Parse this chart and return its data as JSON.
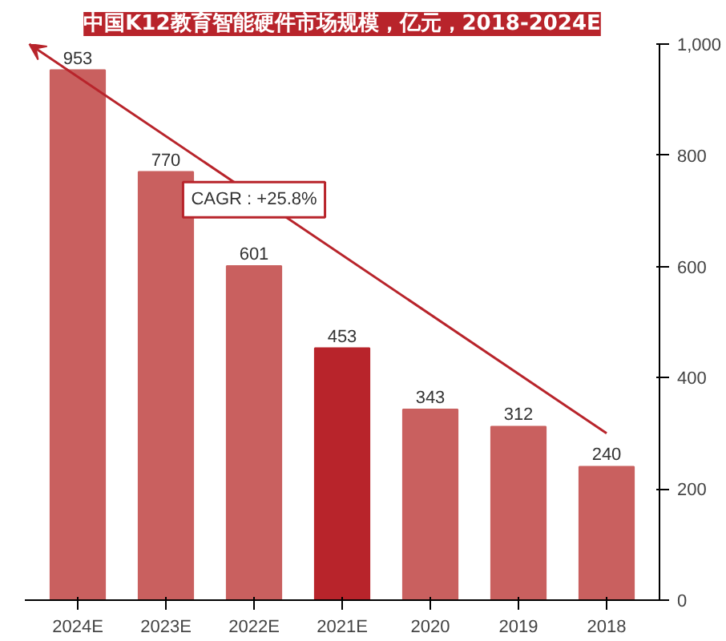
{
  "chart_data": {
    "type": "bar",
    "title": "中国K12教育智能硬件市场规模，亿元，2018-2024E",
    "categories": [
      "2024E",
      "2023E",
      "2022E",
      "2021E",
      "2020",
      "2019",
      "2018"
    ],
    "values": [
      953,
      770,
      601,
      453,
      343,
      312,
      240
    ],
    "colors": [
      "#c9605f",
      "#c9605f",
      "#c9605f",
      "#b8242b",
      "#c9605f",
      "#c9605f",
      "#c9605f"
    ],
    "ylim": [
      0,
      1000
    ],
    "yticks": [
      0,
      200,
      400,
      600,
      800,
      {
        "value": 1000,
        "label": "1,000"
      }
    ],
    "data_labels": true,
    "grid": false,
    "annotations": [
      "CAGR : +25.8%"
    ]
  }
}
